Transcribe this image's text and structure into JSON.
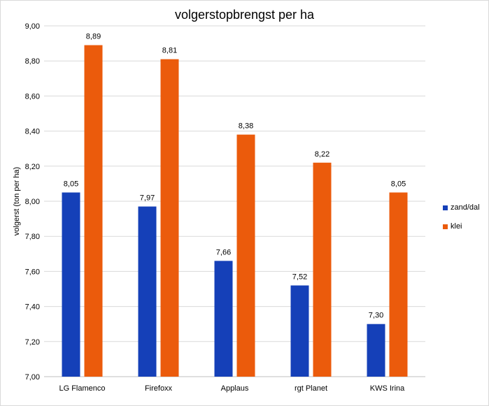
{
  "chart_data": {
    "type": "bar",
    "title": "volgerstopbrengst per ha",
    "xlabel": "",
    "ylabel": "volgerst (ton per ha)",
    "categories": [
      "LG Flamenco",
      "Firefoxx",
      "Applaus",
      "rgt Planet",
      "KWS Irina"
    ],
    "series": [
      {
        "name": "zand/dal",
        "color": "#1540b8",
        "values": [
          8.05,
          7.97,
          7.66,
          7.52,
          7.3
        ],
        "labels": [
          "8,05",
          "7,97",
          "7,66",
          "7,52",
          "7,30"
        ]
      },
      {
        "name": "klei",
        "color": "#eb5b0c",
        "values": [
          8.89,
          8.81,
          8.38,
          8.22,
          8.05
        ],
        "labels": [
          "8,89",
          "8,81",
          "8,38",
          "8,22",
          "8,05"
        ]
      }
    ],
    "ylim": [
      7.0,
      9.0
    ],
    "yticks": [
      7.0,
      7.2,
      7.4,
      7.6,
      7.8,
      8.0,
      8.2,
      8.4,
      8.6,
      8.8,
      9.0
    ],
    "ytick_labels": [
      "7,00",
      "7,20",
      "7,40",
      "7,60",
      "7,80",
      "8,00",
      "8,20",
      "8,40",
      "8,60",
      "8,80",
      "9,00"
    ],
    "grid": true,
    "legend_position": "right"
  }
}
